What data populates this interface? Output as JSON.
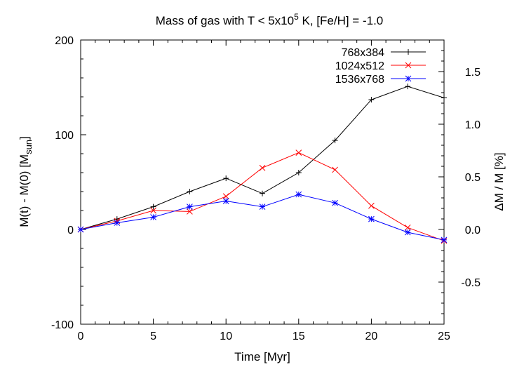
{
  "chart_data": {
    "type": "line",
    "title_main": "Mass of gas with T < 5x10",
    "title_sup": "5",
    "title_rest": " K, [Fe/H] = -1.0",
    "xlabel": "Time [Myr]",
    "ylabel_main": "M(t) - M(0)   [M",
    "ylabel_sub": "sun",
    "ylabel_end": "]",
    "y2label": "ΔM / M  [%]",
    "xlim": [
      0,
      25
    ],
    "ylim": [
      -100,
      200
    ],
    "y2lim": [
      -0.9,
      1.8
    ],
    "xticks": [
      0,
      5,
      10,
      15,
      20,
      25
    ],
    "yticks": [
      -100,
      0,
      100,
      200
    ],
    "y2ticks": [
      -0.5,
      0.0,
      0.5,
      1.0,
      1.5
    ],
    "y2ticklabels": [
      "-0.5",
      "0.0",
      "0.5",
      "1.0",
      "1.5"
    ],
    "legend_position": "top-right",
    "series": [
      {
        "name": "768x384",
        "color": "#000000",
        "marker": "plus",
        "x": [
          0,
          2.5,
          5,
          7.5,
          10,
          12.5,
          15,
          17.5,
          20,
          22.5,
          25
        ],
        "y": [
          0,
          11,
          24,
          40,
          54,
          38,
          60,
          94,
          137,
          151,
          139
        ]
      },
      {
        "name": "1024x512",
        "color": "#ff0000",
        "marker": "cross",
        "x": [
          0,
          2.5,
          5,
          7.5,
          10,
          12.5,
          15,
          17.5,
          20,
          22.5,
          25
        ],
        "y": [
          0,
          9,
          20,
          19,
          35,
          65,
          81,
          63,
          25,
          2,
          -12
        ]
      },
      {
        "name": "1536x768",
        "color": "#0000ff",
        "marker": "star",
        "x": [
          0,
          2.5,
          5,
          7.5,
          10,
          12.5,
          15,
          17.5,
          20,
          22.5,
          25
        ],
        "y": [
          0,
          7,
          13,
          24,
          30,
          24,
          37,
          28,
          11,
          -3,
          -11
        ]
      }
    ]
  }
}
